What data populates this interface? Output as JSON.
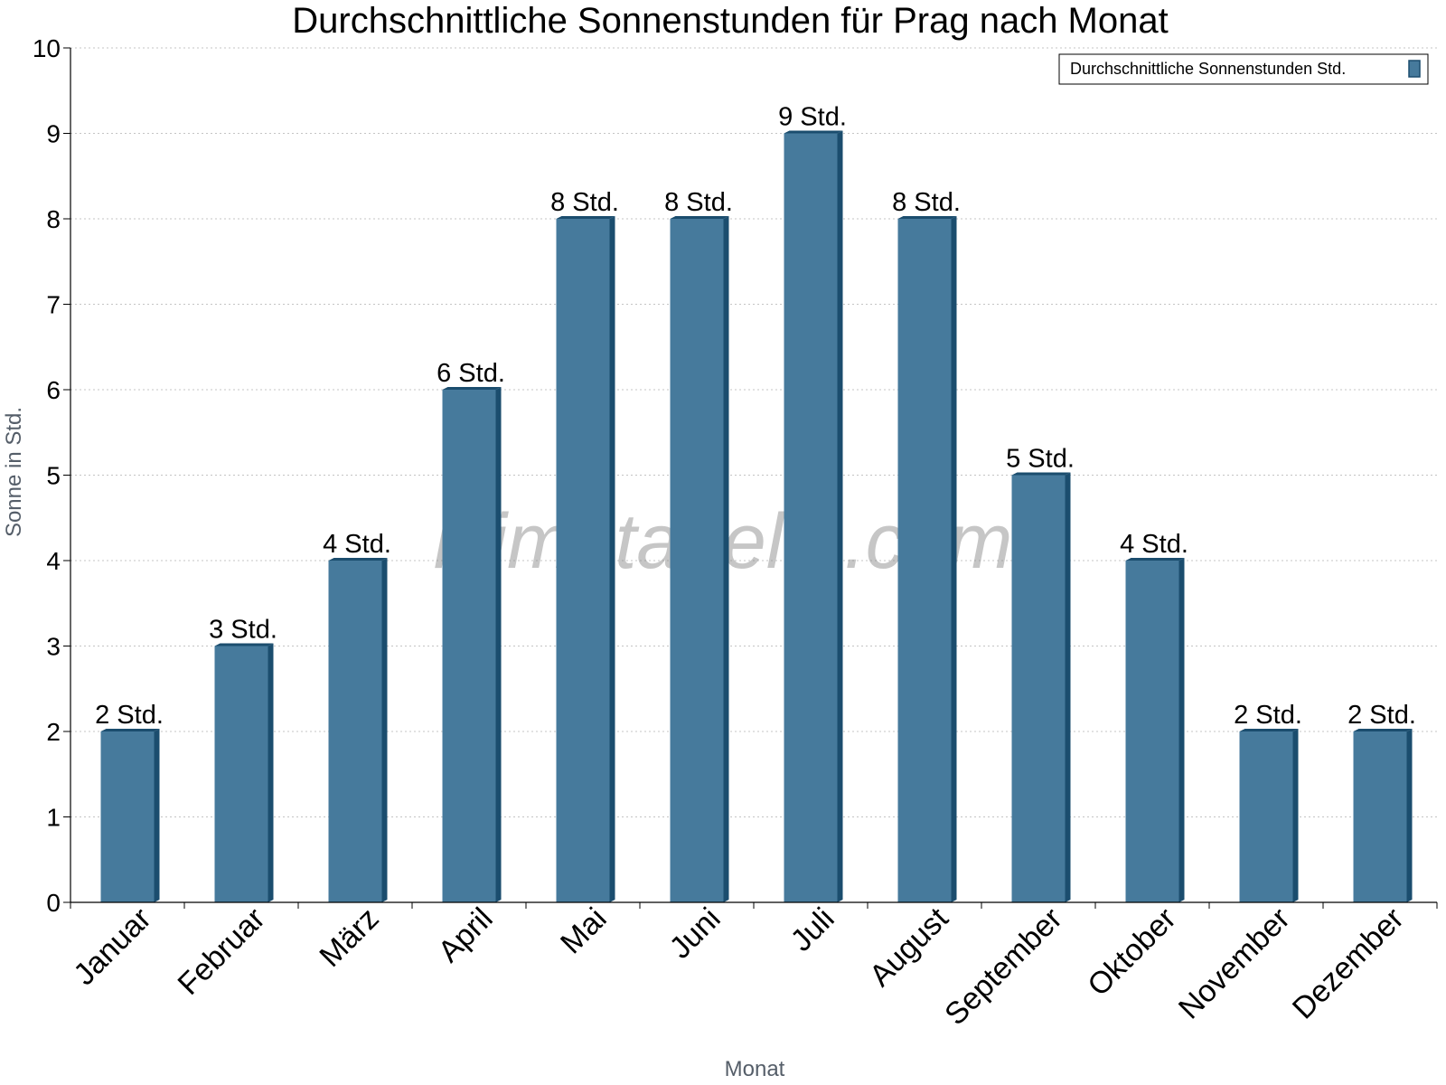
{
  "chart_data": {
    "type": "bar",
    "title": "Durchschnittliche Sonnenstunden für Prag nach Monat",
    "xlabel": "Monat",
    "ylabel": "Sonne in Std.",
    "ylim": [
      0,
      10
    ],
    "yticks": [
      "0",
      "1",
      "2",
      "3",
      "4",
      "5",
      "6",
      "7",
      "8",
      "9",
      "10"
    ],
    "grid": true,
    "legend_position": "top-right",
    "categories": [
      "Januar",
      "Februar",
      "März",
      "April",
      "Mai",
      "Juni",
      "Juli",
      "August",
      "September",
      "Oktober",
      "November",
      "Dezember"
    ],
    "series": [
      {
        "name": "Durchschnittliche Sonnenstunden Std.",
        "values": [
          2,
          3,
          4,
          6,
          8,
          8,
          9,
          8,
          5,
          4,
          2,
          2
        ],
        "labels": [
          "2 Std.",
          "3 Std.",
          "4 Std.",
          "6 Std.",
          "8 Std.",
          "8 Std.",
          "9 Std.",
          "8 Std.",
          "5 Std.",
          "4 Std.",
          "2 Std.",
          "2 Std."
        ],
        "color": "#467a9c",
        "side_color": "#1b4d6e"
      }
    ],
    "watermark": "klimatabelle.com"
  }
}
